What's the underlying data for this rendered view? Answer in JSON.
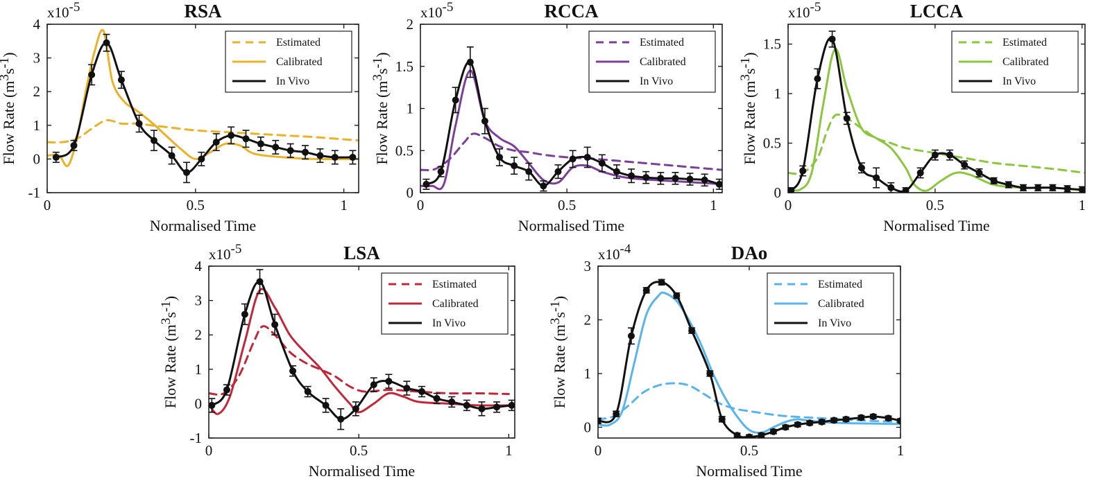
{
  "figure": {
    "panel_count": 5
  },
  "chart_data": [
    {
      "type": "line",
      "title": "RSA",
      "xlabel": "Normalised Time",
      "ylabel": "Flow Rate (m³s⁻¹)",
      "ylabel_base": "Flow Rate (m",
      "ylabel_sup1": "3",
      "ylabel_mid": "s",
      "ylabel_sup2": "-1",
      "ylabel_end": ")",
      "scale_base": "x10",
      "scale_exp": "-5",
      "xlim": [
        0,
        1.05
      ],
      "ylim": [
        -1,
        4
      ],
      "xticks": [
        0,
        0.5,
        1
      ],
      "xtick_labels": [
        "0",
        "0.5",
        "1"
      ],
      "yticks": [
        -1,
        0,
        1,
        2,
        3,
        4
      ],
      "ytick_labels": [
        "-1",
        "0",
        "1",
        "2",
        "3",
        "4"
      ],
      "color": "#E8B32A",
      "legend": [
        "Estimated",
        "Calibrated",
        "In Vivo"
      ],
      "series": [
        {
          "name": "Estimated",
          "style": "dashed",
          "x": [
            0,
            0.05,
            0.1,
            0.15,
            0.2,
            0.25,
            0.3,
            0.35,
            0.4,
            0.5,
            0.6,
            0.7,
            0.8,
            0.9,
            1.05
          ],
          "y": [
            0.5,
            0.5,
            0.6,
            0.9,
            1.15,
            1.05,
            1.05,
            1.0,
            0.95,
            0.85,
            0.8,
            0.75,
            0.7,
            0.65,
            0.55
          ]
        },
        {
          "name": "Calibrated",
          "style": "solid",
          "x": [
            0,
            0.04,
            0.07,
            0.1,
            0.13,
            0.16,
            0.19,
            0.22,
            0.26,
            0.3,
            0.35,
            0.4,
            0.45,
            0.5,
            0.55,
            0.6,
            0.65,
            0.7,
            0.8,
            0.9,
            1.05
          ],
          "y": [
            0.1,
            0.1,
            -0.2,
            0.6,
            2.0,
            3.2,
            3.8,
            2.3,
            1.7,
            1.45,
            1.1,
            0.7,
            0.3,
            0.0,
            0.2,
            0.45,
            0.4,
            0.15,
            0.05,
            0.0,
            0.0
          ]
        },
        {
          "name": "In Vivo",
          "style": "solid",
          "markers": true,
          "x": [
            0.03,
            0.09,
            0.15,
            0.2,
            0.25,
            0.31,
            0.36,
            0.42,
            0.47,
            0.52,
            0.57,
            0.62,
            0.67,
            0.72,
            0.77,
            0.82,
            0.87,
            0.92,
            0.97,
            1.03
          ],
          "y": [
            0.05,
            0.4,
            2.5,
            3.45,
            2.35,
            1.05,
            0.55,
            0.1,
            -0.4,
            0.0,
            0.5,
            0.7,
            0.6,
            0.45,
            0.35,
            0.25,
            0.2,
            0.1,
            0.05,
            0.05
          ],
          "err": [
            0.15,
            0.15,
            0.3,
            0.25,
            0.25,
            0.25,
            0.3,
            0.25,
            0.3,
            0.2,
            0.25,
            0.25,
            0.25,
            0.2,
            0.2,
            0.2,
            0.2,
            0.2,
            0.2,
            0.2
          ]
        }
      ]
    },
    {
      "type": "line",
      "title": "RCCA",
      "xlabel": "Normalised Time",
      "ylabel": "Flow Rate (m³s⁻¹)",
      "ylabel_base": "Flow Rate (m",
      "ylabel_sup1": "3",
      "ylabel_mid": "s",
      "ylabel_sup2": "-1",
      "ylabel_end": ")",
      "scale_base": "x10",
      "scale_exp": "-5",
      "xlim": [
        0,
        1.03
      ],
      "ylim": [
        0,
        2
      ],
      "xticks": [
        0,
        0.5,
        1
      ],
      "xtick_labels": [
        "0",
        "0.5",
        "1"
      ],
      "yticks": [
        0,
        0.5,
        1,
        1.5,
        2
      ],
      "ytick_labels": [
        "0",
        "0.5",
        "1",
        "1.5",
        "2"
      ],
      "color": "#7B3F99",
      "legend": [
        "Estimated",
        "Calibrated",
        "In Vivo"
      ],
      "series": [
        {
          "name": "Estimated",
          "style": "dashed",
          "x": [
            0,
            0.05,
            0.1,
            0.15,
            0.18,
            0.22,
            0.27,
            0.32,
            0.37,
            0.42,
            0.5,
            0.6,
            0.7,
            0.8,
            0.9,
            1.03
          ],
          "y": [
            0.27,
            0.28,
            0.4,
            0.6,
            0.7,
            0.65,
            0.55,
            0.5,
            0.48,
            0.45,
            0.42,
            0.4,
            0.37,
            0.34,
            0.31,
            0.27
          ]
        },
        {
          "name": "Calibrated",
          "style": "solid",
          "x": [
            0,
            0.04,
            0.08,
            0.12,
            0.17,
            0.22,
            0.27,
            0.32,
            0.37,
            0.42,
            0.47,
            0.52,
            0.57,
            0.62,
            0.7,
            0.8,
            0.9,
            1.03
          ],
          "y": [
            0.08,
            0.08,
            0.1,
            0.8,
            1.45,
            0.85,
            0.65,
            0.55,
            0.35,
            0.15,
            0.12,
            0.3,
            0.32,
            0.25,
            0.18,
            0.15,
            0.13,
            0.1
          ]
        },
        {
          "name": "In Vivo",
          "style": "solid",
          "markers": true,
          "x": [
            0.02,
            0.07,
            0.12,
            0.17,
            0.22,
            0.27,
            0.32,
            0.37,
            0.42,
            0.47,
            0.52,
            0.57,
            0.62,
            0.67,
            0.72,
            0.77,
            0.82,
            0.87,
            0.92,
            0.97,
            1.02
          ],
          "y": [
            0.1,
            0.25,
            1.1,
            1.55,
            0.85,
            0.42,
            0.32,
            0.25,
            0.08,
            0.25,
            0.4,
            0.42,
            0.35,
            0.25,
            0.2,
            0.18,
            0.17,
            0.17,
            0.16,
            0.15,
            0.1
          ]
        },
        {
          "name": "In Vivo error",
          "style": "bars",
          "x": [
            0.02,
            0.07,
            0.12,
            0.17,
            0.22,
            0.27,
            0.32,
            0.37,
            0.42,
            0.47,
            0.52,
            0.57,
            0.62,
            0.67,
            0.72,
            0.77,
            0.82,
            0.87,
            0.92,
            0.97,
            1.02
          ],
          "y": [
            0.06,
            0.06,
            0.15,
            0.18,
            0.15,
            0.1,
            0.1,
            0.1,
            0.06,
            0.08,
            0.1,
            0.12,
            0.1,
            0.08,
            0.08,
            0.07,
            0.07,
            0.07,
            0.07,
            0.07,
            0.06
          ]
        }
      ]
    },
    {
      "type": "line",
      "title": "LCCA",
      "xlabel": "Normalised Time",
      "ylabel": "Flow Rate (m³s⁻¹)",
      "ylabel_base": "Flow Rate (m",
      "ylabel_sup1": "3",
      "ylabel_mid": "s",
      "ylabel_sup2": "-1",
      "ylabel_end": ")",
      "scale_base": "x10",
      "scale_exp": "-5",
      "xlim": [
        0,
        1.01
      ],
      "ylim": [
        0,
        1.7
      ],
      "xticks": [
        0,
        0.5,
        1
      ],
      "xtick_labels": [
        "0",
        "0.5",
        "1"
      ],
      "yticks": [
        0,
        0.5,
        1,
        1.5
      ],
      "ytick_labels": [
        "0",
        "0.5",
        "1",
        "1.5"
      ],
      "color": "#8CC63F",
      "legend": [
        "Estimated",
        "Calibrated",
        "In Vivo"
      ],
      "series": [
        {
          "name": "Estimated",
          "style": "dashed",
          "x": [
            0,
            0.05,
            0.1,
            0.13,
            0.16,
            0.2,
            0.25,
            0.3,
            0.35,
            0.4,
            0.5,
            0.6,
            0.7,
            0.8,
            0.9,
            1.01
          ],
          "y": [
            0.2,
            0.2,
            0.35,
            0.6,
            0.78,
            0.75,
            0.65,
            0.55,
            0.5,
            0.45,
            0.4,
            0.35,
            0.3,
            0.27,
            0.24,
            0.2
          ]
        },
        {
          "name": "Calibrated",
          "style": "solid",
          "x": [
            0,
            0.04,
            0.08,
            0.12,
            0.16,
            0.2,
            0.25,
            0.3,
            0.35,
            0.4,
            0.43,
            0.47,
            0.52,
            0.57,
            0.62,
            0.7,
            0.8,
            0.9,
            1.01
          ],
          "y": [
            0.05,
            0.03,
            0.2,
            0.9,
            1.45,
            1.05,
            0.65,
            0.55,
            0.45,
            0.25,
            0.08,
            0.02,
            0.12,
            0.2,
            0.18,
            0.08,
            0.05,
            0.05,
            0.02
          ]
        },
        {
          "name": "In Vivo",
          "style": "solid",
          "markers": true,
          "x": [
            0.01,
            0.05,
            0.1,
            0.15,
            0.2,
            0.25,
            0.3,
            0.35,
            0.4,
            0.45,
            0.5,
            0.55,
            0.6,
            0.65,
            0.7,
            0.75,
            0.8,
            0.85,
            0.9,
            0.95,
            1.0
          ],
          "y": [
            0.02,
            0.22,
            1.15,
            1.55,
            0.75,
            0.25,
            0.15,
            0.05,
            0.02,
            0.2,
            0.38,
            0.38,
            0.28,
            0.2,
            0.12,
            0.08,
            0.05,
            0.05,
            0.05,
            0.04,
            0.03
          ],
          "err": [
            0.03,
            0.05,
            0.1,
            0.08,
            0.06,
            0.05,
            0.1,
            0.05,
            0.03,
            0.05,
            0.05,
            0.05,
            0.04,
            0.04,
            0.03,
            0.03,
            0.03,
            0.03,
            0.03,
            0.03,
            0.03
          ]
        }
      ]
    },
    {
      "type": "line",
      "title": "LSA",
      "xlabel": "Normalised Time",
      "ylabel": "Flow Rate (m³s⁻¹)",
      "ylabel_base": "Flow Rate (m",
      "ylabel_sup1": "3",
      "ylabel_mid": "s",
      "ylabel_sup2": "-1",
      "ylabel_end": ")",
      "scale_base": "x10",
      "scale_exp": "-5",
      "xlim": [
        0,
        1.02
      ],
      "ylim": [
        -1,
        4
      ],
      "xticks": [
        0,
        0.5,
        1
      ],
      "xtick_labels": [
        "0",
        "0.5",
        "1"
      ],
      "yticks": [
        -1,
        0,
        1,
        2,
        3,
        4
      ],
      "ytick_labels": [
        "-1",
        "0",
        "1",
        "2",
        "3",
        "4"
      ],
      "color": "#C0283A",
      "legend": [
        "Estimated",
        "Calibrated",
        "In Vivo"
      ],
      "series": [
        {
          "name": "Estimated",
          "style": "dashed",
          "x": [
            0,
            0.05,
            0.1,
            0.15,
            0.18,
            0.22,
            0.27,
            0.32,
            0.37,
            0.42,
            0.47,
            0.52,
            0.6,
            0.7,
            0.8,
            0.9,
            1.0
          ],
          "y": [
            0.3,
            0.3,
            0.8,
            1.8,
            2.25,
            2.0,
            1.5,
            1.2,
            1.0,
            0.8,
            0.5,
            0.35,
            0.4,
            0.35,
            0.3,
            0.3,
            0.28
          ]
        },
        {
          "name": "Calibrated",
          "style": "solid",
          "x": [
            0,
            0.03,
            0.07,
            0.12,
            0.17,
            0.22,
            0.27,
            0.32,
            0.37,
            0.42,
            0.47,
            0.5,
            0.55,
            0.6,
            0.65,
            0.7,
            0.8,
            0.9,
            1.0
          ],
          "y": [
            0.0,
            -0.3,
            0.2,
            1.8,
            3.3,
            2.8,
            2.0,
            1.5,
            1.05,
            0.5,
            0.0,
            -0.25,
            0.0,
            0.3,
            0.2,
            0.05,
            0.0,
            -0.05,
            -0.05
          ]
        },
        {
          "name": "In Vivo",
          "style": "solid",
          "markers": true,
          "x": [
            0.01,
            0.06,
            0.12,
            0.17,
            0.22,
            0.28,
            0.33,
            0.39,
            0.44,
            0.49,
            0.55,
            0.6,
            0.66,
            0.71,
            0.76,
            0.81,
            0.86,
            0.91,
            0.96,
            1.01
          ],
          "y": [
            -0.05,
            0.4,
            2.6,
            3.55,
            2.3,
            0.95,
            0.35,
            -0.05,
            -0.45,
            -0.15,
            0.55,
            0.65,
            0.45,
            0.35,
            0.15,
            0.05,
            -0.05,
            -0.15,
            -0.1,
            -0.05
          ],
          "err": [
            0.2,
            0.15,
            0.3,
            0.35,
            0.3,
            0.15,
            0.15,
            0.2,
            0.3,
            0.2,
            0.2,
            0.2,
            0.2,
            0.15,
            0.15,
            0.15,
            0.15,
            0.2,
            0.15,
            0.15
          ]
        }
      ]
    },
    {
      "type": "line",
      "title": "DAo",
      "xlabel": "Normalised Time",
      "ylabel": "Flow Rate (m³s⁻¹)",
      "ylabel_base": "Flow Rate (m",
      "ylabel_sup1": "3",
      "ylabel_mid": "s",
      "ylabel_sup2": "-1",
      "ylabel_end": ")",
      "scale_base": "x10",
      "scale_exp": "-4",
      "xlim": [
        0,
        1
      ],
      "ylim": [
        -0.2,
        3
      ],
      "xticks": [
        0,
        0.5,
        1
      ],
      "xtick_labels": [
        "0",
        "0.5",
        "1"
      ],
      "yticks": [
        0,
        1,
        2,
        3
      ],
      "ytick_labels": [
        "0",
        "1",
        "2",
        "3"
      ],
      "color": "#5AB4EC",
      "legend": [
        "Estimated",
        "Calibrated",
        "In Vivo"
      ],
      "series": [
        {
          "name": "Estimated",
          "style": "dashed",
          "x": [
            0,
            0.05,
            0.1,
            0.15,
            0.2,
            0.25,
            0.3,
            0.35,
            0.4,
            0.45,
            0.5,
            0.6,
            0.7,
            0.8,
            0.9,
            1.0
          ],
          "y": [
            0.15,
            0.2,
            0.4,
            0.65,
            0.78,
            0.82,
            0.78,
            0.62,
            0.45,
            0.35,
            0.3,
            0.22,
            0.18,
            0.15,
            0.12,
            0.1
          ]
        },
        {
          "name": "Calibrated",
          "style": "solid",
          "x": [
            0,
            0.04,
            0.08,
            0.12,
            0.16,
            0.2,
            0.22,
            0.26,
            0.3,
            0.34,
            0.38,
            0.42,
            0.46,
            0.5,
            0.54,
            0.58,
            0.62,
            0.66,
            0.7,
            0.8,
            0.9,
            1.0
          ],
          "y": [
            0.05,
            0.05,
            0.3,
            1.2,
            2.1,
            2.45,
            2.5,
            2.35,
            2.0,
            1.55,
            1.0,
            0.55,
            0.2,
            -0.05,
            -0.1,
            0.0,
            0.1,
            0.15,
            0.12,
            0.08,
            0.07,
            0.06
          ]
        },
        {
          "name": "In Vivo",
          "style": "solid",
          "markers": true,
          "x": [
            0.0,
            0.06,
            0.11,
            0.16,
            0.21,
            0.26,
            0.31,
            0.37,
            0.41,
            0.46,
            0.5,
            0.54,
            0.58,
            0.62,
            0.66,
            0.7,
            0.74,
            0.78,
            0.82,
            0.87,
            0.91,
            0.96,
            1.0
          ],
          "y": [
            0.12,
            0.25,
            1.7,
            2.55,
            2.7,
            2.45,
            1.8,
            1.0,
            0.15,
            -0.15,
            -0.18,
            -0.15,
            -0.08,
            0.0,
            0.05,
            0.08,
            0.1,
            0.13,
            0.15,
            0.18,
            0.2,
            0.17,
            0.12
          ],
          "err": [
            0.05,
            0.05,
            0.15,
            0.05,
            0.05,
            0.05,
            0.05,
            0.05,
            0.05,
            0.04,
            0.04,
            0.04,
            0.04,
            0.04,
            0.04,
            0.04,
            0.04,
            0.04,
            0.04,
            0.04,
            0.04,
            0.04,
            0.04
          ]
        }
      ]
    }
  ]
}
